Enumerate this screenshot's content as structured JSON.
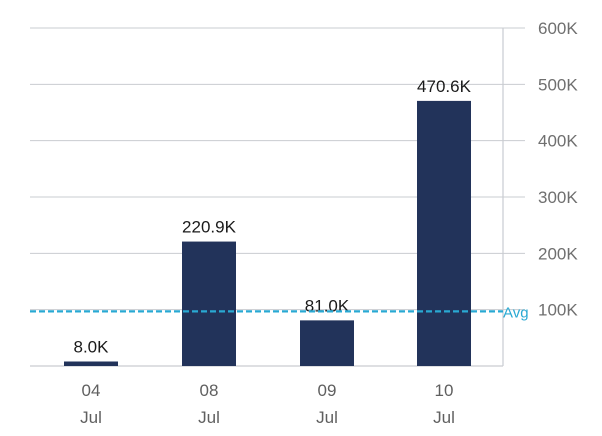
{
  "chart_data": {
    "type": "bar",
    "categories": [
      {
        "day": "04",
        "month": "Jul"
      },
      {
        "day": "08",
        "month": "Jul"
      },
      {
        "day": "09",
        "month": "Jul"
      },
      {
        "day": "10",
        "month": "Jul"
      }
    ],
    "values": [
      8000,
      220900,
      81000,
      470600
    ],
    "data_labels": [
      "8.0K",
      "220.9K",
      "81.0K",
      "470.6K"
    ],
    "y_ticks": [
      {
        "value": 100000,
        "label": "100K"
      },
      {
        "value": 200000,
        "label": "200K"
      },
      {
        "value": 300000,
        "label": "300K"
      },
      {
        "value": 400000,
        "label": "400K"
      },
      {
        "value": 500000,
        "label": "500K"
      },
      {
        "value": 600000,
        "label": "600K"
      }
    ],
    "ylim": [
      0,
      600000
    ],
    "y_axis_side": "right",
    "grid": true,
    "average": {
      "label": "Avg",
      "value": 97000
    },
    "title": "",
    "xlabel": "",
    "ylabel": "",
    "colors": {
      "bar": "#22335a",
      "average": "#29a9d3",
      "grid": "#c9ccd1"
    }
  }
}
